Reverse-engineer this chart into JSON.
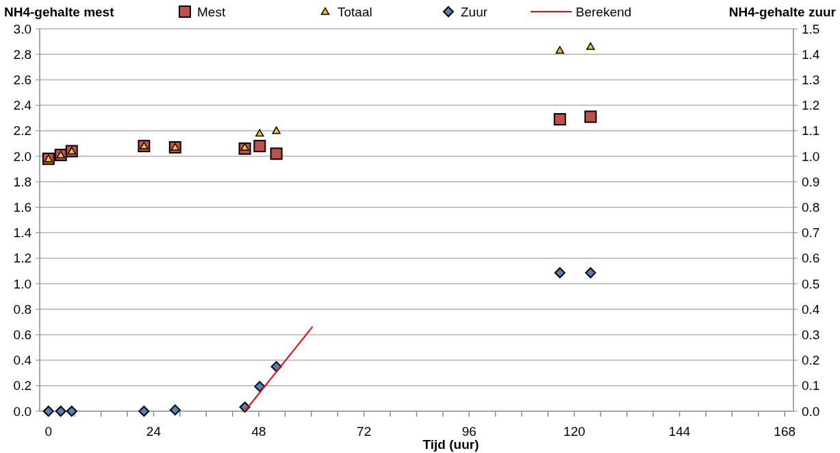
{
  "chart_data": {
    "type": "scatter",
    "xlabel": "Tijd (uur)",
    "ylabel": "NH4-gehalte mest",
    "y2label": "NH4-gehalte zuur",
    "x": [
      0,
      2.8,
      5.3,
      21.8,
      28.9,
      44.8,
      48.2,
      52,
      116.7,
      123.7
    ],
    "series": [
      {
        "name": "Mest",
        "color": "#c0504d",
        "marker": "square",
        "values": [
          1.98,
          2.01,
          2.04,
          2.08,
          2.07,
          2.06,
          2.08,
          2.02,
          2.29,
          2.31
        ]
      },
      {
        "name": "Totaal",
        "color": "#ffc000",
        "marker": "triangle",
        "values": [
          1.98,
          2.01,
          2.04,
          2.08,
          2.07,
          2.07,
          2.18,
          2.2,
          2.83,
          2.86
        ]
      },
      {
        "name": "Zuur",
        "color": "#4f81bd",
        "marker": "diamond",
        "axis": "y2",
        "values": [
          0,
          0,
          0,
          0,
          0.005,
          0.016,
          0.097,
          0.175,
          0.543,
          0.543
        ]
      },
      {
        "name": "Berekend",
        "color": "#ff0000",
        "type": "line",
        "marker": "none",
        "axis": "y2",
        "x": [
          44.8,
          60.2
        ],
        "values": [
          0,
          0.33
        ]
      }
    ],
    "xlim": [
      -2,
      170
    ],
    "xticks": [
      0,
      {
        "value": 6,
        "label": null
      },
      {
        "value": 12,
        "label": null
      },
      {
        "value": 18,
        "label": null
      },
      24,
      {
        "value": 30,
        "label": null
      },
      {
        "value": 36,
        "label": null
      },
      {
        "value": 42,
        "label": null
      },
      48,
      {
        "value": 54,
        "label": null
      },
      {
        "value": 60,
        "label": null
      },
      {
        "value": 66,
        "label": null
      },
      72,
      {
        "value": 78,
        "label": null
      },
      {
        "value": 84,
        "label": null
      },
      {
        "value": 90,
        "label": null
      },
      96,
      {
        "value": 102,
        "label": null
      },
      {
        "value": 108,
        "label": null
      },
      {
        "value": 114,
        "label": null
      },
      120,
      {
        "value": 126,
        "label": null
      },
      {
        "value": 132,
        "label": null
      },
      {
        "value": 138,
        "label": null
      },
      144,
      {
        "value": 150,
        "label": null
      },
      {
        "value": 156,
        "label": null
      },
      {
        "value": 162,
        "label": null
      },
      168
    ],
    "ylim": [
      0,
      3
    ],
    "yticks": [
      {
        "value": 0,
        "label": "0.0"
      },
      0.2,
      0.4,
      0.6,
      0.8,
      {
        "value": 1,
        "label": "1.0"
      },
      1.2,
      1.4,
      1.6,
      1.8,
      {
        "value": 2,
        "label": "2.0"
      },
      2.2,
      2.4,
      2.6,
      2.8,
      {
        "value": 3,
        "label": "3.0"
      }
    ],
    "y2lim": [
      0,
      1.5
    ],
    "y2ticks": [
      {
        "value": 0,
        "label": "0.0"
      },
      0.1,
      0.2,
      0.3,
      0.4,
      0.5,
      0.6,
      0.7,
      0.8,
      0.9,
      {
        "value": 1,
        "label": "1.0"
      },
      1.1,
      1.2,
      1.3,
      1.4,
      1.5
    ],
    "grid": "y",
    "legend": "top"
  }
}
